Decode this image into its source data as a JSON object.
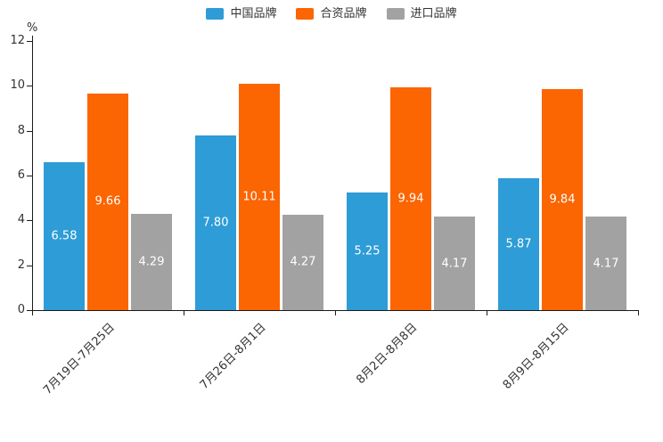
{
  "chart_data": {
    "type": "bar",
    "title": "",
    "ylabel": "%",
    "xlabel": "",
    "ylim": [
      0,
      12
    ],
    "yticks": [
      0,
      2,
      4,
      6,
      8,
      10,
      12
    ],
    "grid": false,
    "legend_position": "top-center",
    "categories": [
      "7月19日-7月25日",
      "7月26日-8月1日",
      "8月2日-8月8日",
      "8月9日-8月15日"
    ],
    "series": [
      {
        "name": "中国品牌",
        "color": "#2E9CD6",
        "values": [
          6.58,
          7.8,
          5.25,
          5.87
        ],
        "labels": [
          "6.58",
          "7.80",
          "5.25",
          "5.87"
        ]
      },
      {
        "name": "合资品牌",
        "color": "#FB6502",
        "values": [
          9.66,
          10.11,
          9.94,
          9.84
        ],
        "labels": [
          "9.66",
          "10.11",
          "9.94",
          "9.84"
        ]
      },
      {
        "name": "进口品牌",
        "color": "#A2A2A2",
        "values": [
          4.29,
          4.27,
          4.17,
          4.17
        ],
        "labels": [
          "4.29",
          "4.27",
          "4.17",
          "4.17"
        ]
      }
    ],
    "value_label_color": "#ffffff",
    "axis_color": "#1a1a1a",
    "text_color": "#333333"
  }
}
